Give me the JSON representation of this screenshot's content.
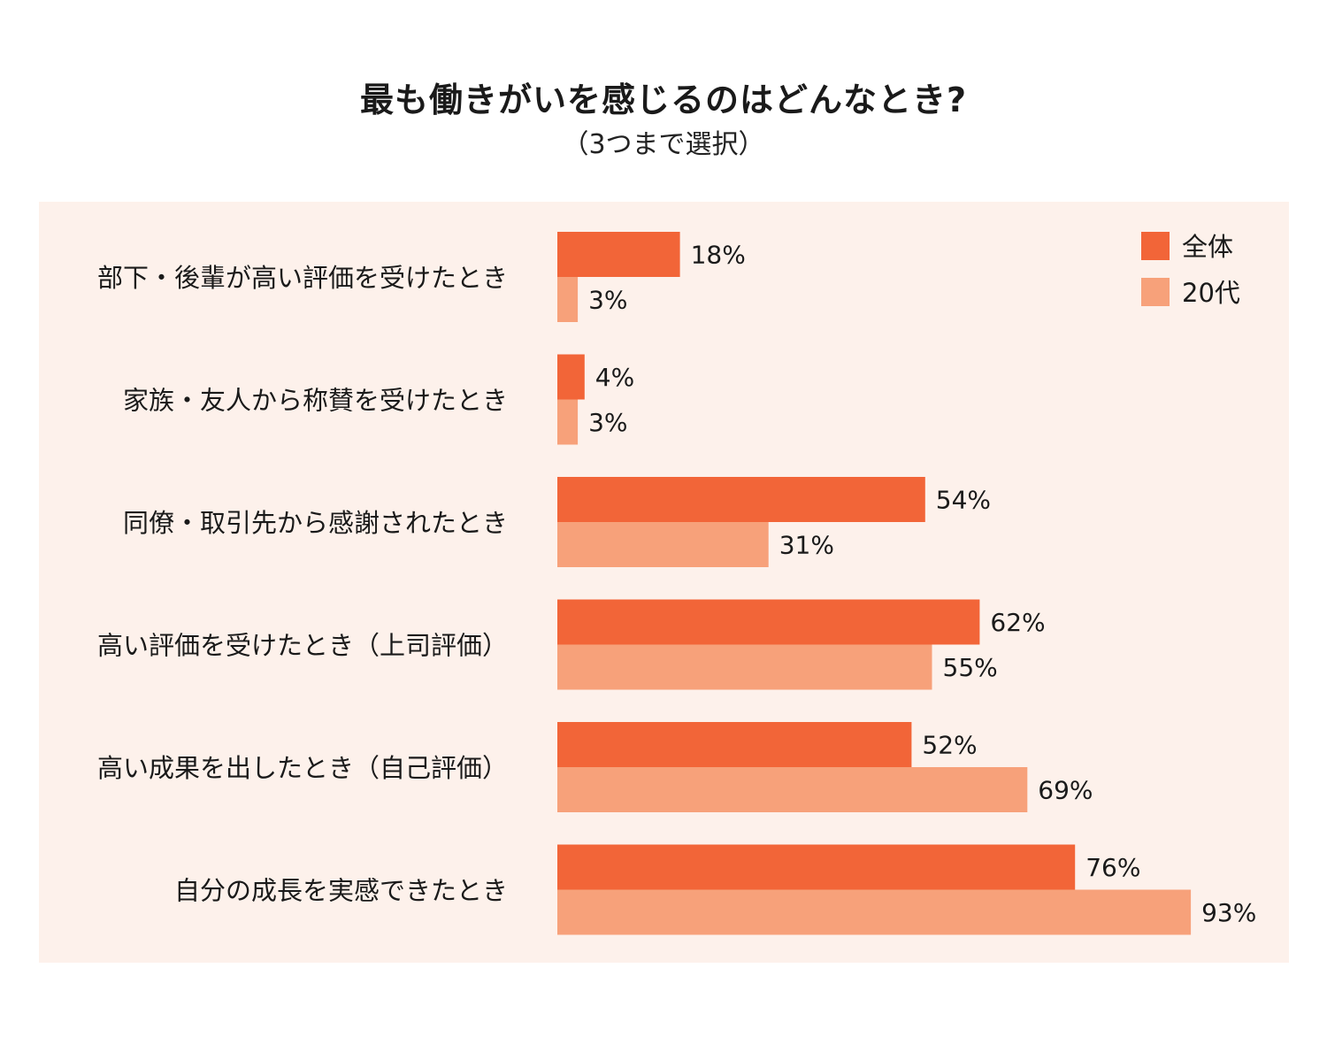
{
  "title": "最も働きがいを感じるのはどんなとき?",
  "subtitle": "（3つまで選択）",
  "chart_data": {
    "type": "bar",
    "orientation": "horizontal",
    "categories": [
      "部下・後輩が高い評価を受けたとき",
      "家族・友人から称賛を受けたとき",
      "同僚・取引先から感謝されたとき",
      "高い評価を受けたとき（上司評価）",
      "高い成果を出したとき（自己評価）",
      "自分の成長を実感できたとき"
    ],
    "series": [
      {
        "name": "全体",
        "color": "#f26538",
        "values": [
          18,
          4,
          54,
          62,
          52,
          76
        ]
      },
      {
        "name": "20代",
        "color": "#f7a17a",
        "values": [
          3,
          3,
          31,
          55,
          69,
          93
        ]
      }
    ],
    "value_suffix": "%",
    "xlim": [
      0,
      100
    ],
    "legend_position": "top-right",
    "grid": false
  }
}
